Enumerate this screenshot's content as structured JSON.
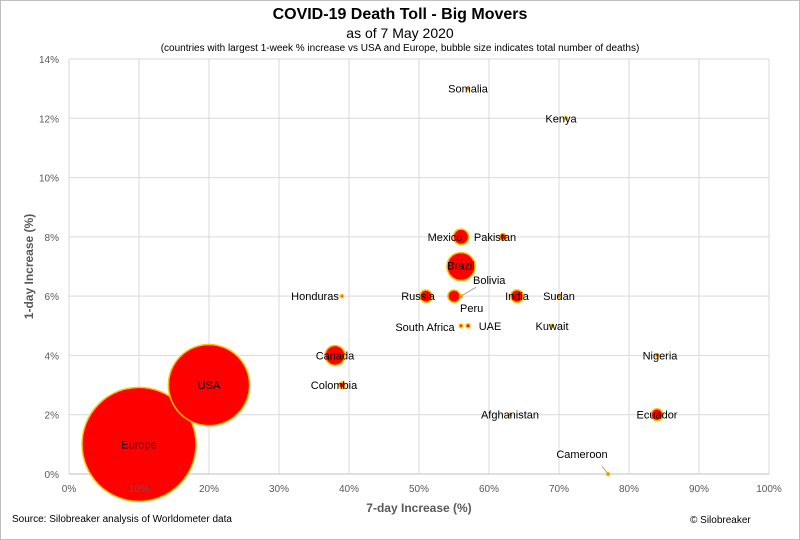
{
  "chart_data": {
    "type": "scatter",
    "title": "COVID-19 Death Toll - Big Movers",
    "subtitle": "as of 7 May 2020",
    "note": "(countries with largest 1-week % increase vs USA and Europe, bubble size indicates total number of deaths)",
    "xlabel": "7-day Increase (%)",
    "ylabel": "1-day Increase (%)",
    "xlim": [
      0,
      100
    ],
    "ylim": [
      0,
      14
    ],
    "x_ticks": [
      "0%",
      "10%",
      "20%",
      "30%",
      "40%",
      "50%",
      "60%",
      "70%",
      "80%",
      "90%",
      "100%"
    ],
    "y_ticks": [
      "0%",
      "2%",
      "4%",
      "6%",
      "8%",
      "10%",
      "12%",
      "14%"
    ],
    "grid": true,
    "bubble_color": "#ff0000",
    "bubble_edge_color": "#ffc000",
    "points": [
      {
        "name": "Europe",
        "x": 10,
        "y": 1.0,
        "size": 148000
      },
      {
        "name": "USA",
        "x": 20,
        "y": 3.0,
        "size": 75000
      },
      {
        "name": "Canada",
        "x": 38,
        "y": 4.0,
        "size": 4500
      },
      {
        "name": "Brazil",
        "x": 56,
        "y": 7.0,
        "size": 9000
      },
      {
        "name": "Mexico",
        "x": 56,
        "y": 8.0,
        "size": 2700
      },
      {
        "name": "Russia",
        "x": 51,
        "y": 6.0,
        "size": 1700
      },
      {
        "name": "Peru",
        "x": 55,
        "y": 6.0,
        "size": 1700
      },
      {
        "name": "India",
        "x": 64,
        "y": 6.0,
        "size": 1800
      },
      {
        "name": "Ecuador",
        "x": 84,
        "y": 2.0,
        "size": 1600
      },
      {
        "name": "Pakistan",
        "x": 62,
        "y": 8.0,
        "size": 500
      },
      {
        "name": "Colombia",
        "x": 39,
        "y": 3.0,
        "size": 400
      },
      {
        "name": "Honduras",
        "x": 39,
        "y": 6.0,
        "size": 100
      },
      {
        "name": "Bolivia",
        "x": 56,
        "y": 6.0,
        "size": 100
      },
      {
        "name": "South Africa",
        "x": 56,
        "y": 5.0,
        "size": 150
      },
      {
        "name": "UAE",
        "x": 57,
        "y": 5.0,
        "size": 200
      },
      {
        "name": "Somalia",
        "x": 57,
        "y": 13.0,
        "size": 10
      },
      {
        "name": "Kenya",
        "x": 71,
        "y": 12.0,
        "size": 10
      },
      {
        "name": "Sudan",
        "x": 70,
        "y": 6.0,
        "size": 10
      },
      {
        "name": "Kuwait",
        "x": 69,
        "y": 5.0,
        "size": 10
      },
      {
        "name": "Nigeria",
        "x": 84,
        "y": 4.0,
        "size": 10
      },
      {
        "name": "Afghanistan",
        "x": 63,
        "y": 2.0,
        "size": 10
      },
      {
        "name": "Cameroon",
        "x": 77,
        "y": 0.0,
        "size": 10
      }
    ]
  },
  "footer": {
    "source": "Source: Silobreaker analysis of Worldometer data",
    "credit": "© Silobreaker"
  }
}
